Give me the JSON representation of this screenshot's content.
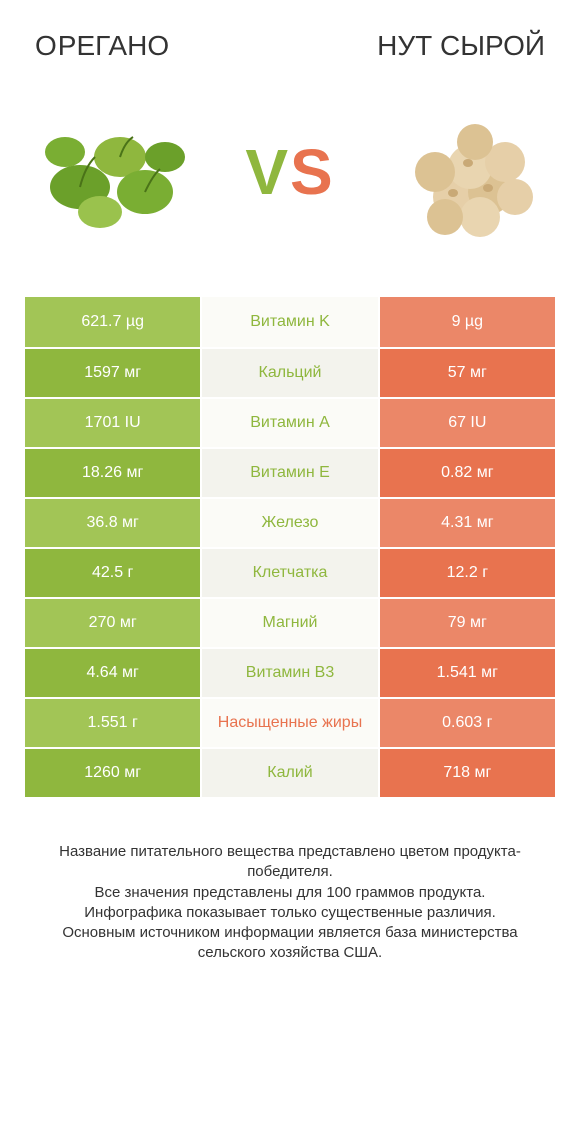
{
  "colors": {
    "left_brand": "#8fb73e",
    "right_brand": "#e8734f",
    "row_left_light": "#a2c556",
    "row_mid_light": "#fbfbf7",
    "row_right_light": "#eb8768",
    "row_left_dark": "#8fb73e",
    "row_mid_dark": "#f3f3ed",
    "row_right_dark": "#e8734f",
    "text_dark": "#333333",
    "text_light": "#ffffff"
  },
  "header": {
    "left_title_first": "O",
    "left_title_rest": "РЕГАНО",
    "right_title": "НУТ СЫРОЙ"
  },
  "vs": {
    "v": "V",
    "s": "S"
  },
  "rows": [
    {
      "left": "621.7 µg",
      "mid": "Витамин K",
      "right": "9 µg",
      "winner": "left"
    },
    {
      "left": "1597 мг",
      "mid": "Кальций",
      "right": "57 мг",
      "winner": "left"
    },
    {
      "left": "1701 IU",
      "mid": "Витамин A",
      "right": "67 IU",
      "winner": "left"
    },
    {
      "left": "18.26 мг",
      "mid": "Витамин E",
      "right": "0.82 мг",
      "winner": "left"
    },
    {
      "left": "36.8 мг",
      "mid": "Железо",
      "right": "4.31 мг",
      "winner": "left"
    },
    {
      "left": "42.5 г",
      "mid": "Клетчатка",
      "right": "12.2 г",
      "winner": "left"
    },
    {
      "left": "270 мг",
      "mid": "Магний",
      "right": "79 мг",
      "winner": "left"
    },
    {
      "left": "4.64 мг",
      "mid": "Витамин B3",
      "right": "1.541 мг",
      "winner": "left"
    },
    {
      "left": "1.551 г",
      "mid": "Насыщенные жиры",
      "right": "0.603 г",
      "winner": "right"
    },
    {
      "left": "1260 мг",
      "mid": "Калий",
      "right": "718 мг",
      "winner": "left"
    }
  ],
  "footer": {
    "line1": "Название питательного вещества представлено цветом продукта-победителя.",
    "line2": "Все значения представлены для 100 граммов продукта.",
    "line3": "Инфографика показывает только существенные различия.",
    "line4": "Основным источником информации является база министерства сельского хозяйства США."
  }
}
